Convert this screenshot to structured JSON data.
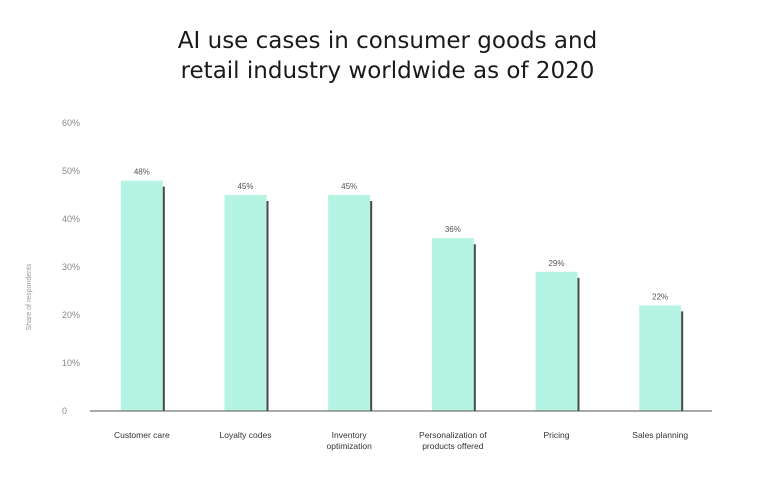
{
  "title_lines": [
    "AI use cases in consumer goods and",
    "retail industry worldwide as of 2020"
  ],
  "colors": {
    "bar": "#b5f3e3",
    "bar_shadow": "#4a4a4a",
    "axis": "#555555",
    "text": "#333333"
  },
  "chart_data": {
    "type": "bar",
    "title": "AI use cases in consumer goods and retail industry worldwide as of 2020",
    "xlabel": "",
    "ylabel": "Share of respondents",
    "categories": [
      [
        "Customer care"
      ],
      [
        "Loyalty codes"
      ],
      [
        "Inventory",
        "optimization"
      ],
      [
        "Personalization of",
        "products offered"
      ],
      [
        "Pricing"
      ],
      [
        "Sales planning"
      ]
    ],
    "values": [
      48,
      45,
      45,
      36,
      29,
      22
    ],
    "data_labels": [
      "48%",
      "45%",
      "45%",
      "36%",
      "29%",
      "22%"
    ],
    "y_ticks": [
      0,
      10,
      20,
      30,
      40,
      50,
      60
    ],
    "y_tick_labels": [
      "0",
      "10%",
      "20%",
      "30%",
      "40%",
      "50%",
      "60%"
    ],
    "ylim": [
      0,
      60
    ],
    "grid": false,
    "legend": "none"
  }
}
